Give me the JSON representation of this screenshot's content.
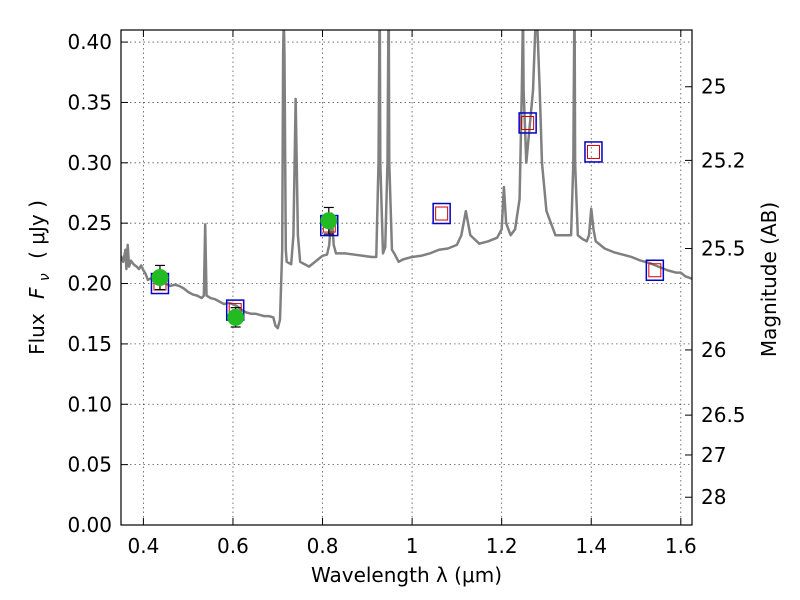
{
  "chart_data": {
    "type": "line",
    "xlabel": "Wavelength  λ (μm)",
    "ylabel_main": "Flux",
    "ylabel_symbol": "F",
    "ylabel_sub": "ν",
    "ylabel_unit": "( μJy )",
    "y2label": "Magnitude (AB)",
    "xlim": [
      0.35,
      1.625
    ],
    "ylim": [
      0.0,
      0.41
    ],
    "grid": true,
    "x_ticks": [
      0.4,
      0.6,
      0.8,
      1.0,
      1.2,
      1.4,
      1.6
    ],
    "x_tick_labels": [
      "0.4",
      "0.6",
      "0.8",
      "1",
      "1.2",
      "1.4",
      "1.6"
    ],
    "y_ticks": [
      0.0,
      0.05,
      0.1,
      0.15,
      0.2,
      0.25,
      0.3,
      0.35,
      0.4
    ],
    "y_tick_labels": [
      "0.00",
      "0.05",
      "0.10",
      "0.15",
      "0.20",
      "0.25",
      "0.30",
      "0.35",
      "0.40"
    ],
    "y2_ticks": [
      {
        "label": "25",
        "flux": 0.363
      },
      {
        "label": "25.2",
        "flux": 0.302
      },
      {
        "label": "25.5",
        "flux": 0.229
      },
      {
        "label": "26",
        "flux": 0.145
      },
      {
        "label": "26.5",
        "flux": 0.091
      },
      {
        "label": "27",
        "flux": 0.058
      },
      {
        "label": "28",
        "flux": 0.023
      }
    ],
    "colors": {
      "spectrum": "#808080",
      "model_box": "#0000cc",
      "model_box_inner": "#cc0000",
      "observed_fill": "#22bb22",
      "grid": "#555555"
    },
    "series": [
      {
        "name": "model spectrum",
        "kind": "line",
        "points": [
          [
            0.35,
            0.223
          ],
          [
            0.355,
            0.218
          ],
          [
            0.36,
            0.228
          ],
          [
            0.362,
            0.212
          ],
          [
            0.365,
            0.232
          ],
          [
            0.368,
            0.214
          ],
          [
            0.372,
            0.219
          ],
          [
            0.378,
            0.216
          ],
          [
            0.385,
            0.214
          ],
          [
            0.39,
            0.212
          ],
          [
            0.395,
            0.215
          ],
          [
            0.4,
            0.211
          ],
          [
            0.405,
            0.208
          ],
          [
            0.41,
            0.203
          ],
          [
            0.415,
            0.204
          ],
          [
            0.42,
            0.205
          ],
          [
            0.425,
            0.203
          ],
          [
            0.43,
            0.202
          ],
          [
            0.435,
            0.201
          ],
          [
            0.44,
            0.201
          ],
          [
            0.45,
            0.2
          ],
          [
            0.46,
            0.198
          ],
          [
            0.47,
            0.199
          ],
          [
            0.48,
            0.198
          ],
          [
            0.49,
            0.196
          ],
          [
            0.5,
            0.193
          ],
          [
            0.51,
            0.191
          ],
          [
            0.52,
            0.19
          ],
          [
            0.53,
            0.188
          ],
          [
            0.535,
            0.19
          ],
          [
            0.538,
            0.249
          ],
          [
            0.541,
            0.19
          ],
          [
            0.55,
            0.188
          ],
          [
            0.56,
            0.187
          ],
          [
            0.57,
            0.185
          ],
          [
            0.58,
            0.183
          ],
          [
            0.59,
            0.184
          ],
          [
            0.6,
            0.183
          ],
          [
            0.61,
            0.181
          ],
          [
            0.62,
            0.178
          ],
          [
            0.63,
            0.176
          ],
          [
            0.64,
            0.175
          ],
          [
            0.65,
            0.175
          ],
          [
            0.66,
            0.174
          ],
          [
            0.67,
            0.173
          ],
          [
            0.68,
            0.173
          ],
          [
            0.69,
            0.172
          ],
          [
            0.695,
            0.165
          ],
          [
            0.7,
            0.163
          ],
          [
            0.705,
            0.17
          ],
          [
            0.71,
            0.228
          ],
          [
            0.712,
            0.39
          ],
          [
            0.713,
            0.41
          ],
          [
            0.714,
            0.41
          ],
          [
            0.715,
            0.39
          ],
          [
            0.718,
            0.228
          ],
          [
            0.72,
            0.218
          ],
          [
            0.73,
            0.216
          ],
          [
            0.735,
            0.24
          ],
          [
            0.74,
            0.353
          ],
          [
            0.745,
            0.24
          ],
          [
            0.75,
            0.218
          ],
          [
            0.76,
            0.216
          ],
          [
            0.77,
            0.214
          ],
          [
            0.78,
            0.217
          ],
          [
            0.79,
            0.22
          ],
          [
            0.8,
            0.223
          ],
          [
            0.81,
            0.224
          ],
          [
            0.815,
            0.232
          ],
          [
            0.82,
            0.258
          ],
          [
            0.825,
            0.232
          ],
          [
            0.83,
            0.225
          ],
          [
            0.85,
            0.225
          ],
          [
            0.87,
            0.224
          ],
          [
            0.89,
            0.223
          ],
          [
            0.91,
            0.222
          ],
          [
            0.92,
            0.222
          ],
          [
            0.925,
            0.3
          ],
          [
            0.927,
            0.41
          ],
          [
            0.928,
            0.41
          ],
          [
            0.929,
            0.3
          ],
          [
            0.935,
            0.225
          ],
          [
            0.94,
            0.23
          ],
          [
            0.945,
            0.3
          ],
          [
            0.947,
            0.41
          ],
          [
            0.948,
            0.41
          ],
          [
            0.949,
            0.3
          ],
          [
            0.955,
            0.228
          ],
          [
            0.96,
            0.225
          ],
          [
            0.97,
            0.218
          ],
          [
            0.98,
            0.22
          ],
          [
            1.0,
            0.222
          ],
          [
            1.02,
            0.223
          ],
          [
            1.04,
            0.225
          ],
          [
            1.06,
            0.228
          ],
          [
            1.08,
            0.229
          ],
          [
            1.1,
            0.232
          ],
          [
            1.11,
            0.24
          ],
          [
            1.12,
            0.26
          ],
          [
            1.13,
            0.24
          ],
          [
            1.15,
            0.233
          ],
          [
            1.17,
            0.235
          ],
          [
            1.19,
            0.238
          ],
          [
            1.2,
            0.245
          ],
          [
            1.205,
            0.28
          ],
          [
            1.21,
            0.25
          ],
          [
            1.22,
            0.24
          ],
          [
            1.23,
            0.245
          ],
          [
            1.24,
            0.27
          ],
          [
            1.245,
            0.36
          ],
          [
            1.247,
            0.41
          ],
          [
            1.248,
            0.41
          ],
          [
            1.249,
            0.36
          ],
          [
            1.255,
            0.3
          ],
          [
            1.27,
            0.36
          ],
          [
            1.275,
            0.41
          ],
          [
            1.28,
            0.41
          ],
          [
            1.285,
            0.36
          ],
          [
            1.29,
            0.3
          ],
          [
            1.3,
            0.26
          ],
          [
            1.32,
            0.24
          ],
          [
            1.34,
            0.24
          ],
          [
            1.355,
            0.24
          ],
          [
            1.36,
            0.3
          ],
          [
            1.362,
            0.41
          ],
          [
            1.363,
            0.41
          ],
          [
            1.364,
            0.3
          ],
          [
            1.37,
            0.24
          ],
          [
            1.38,
            0.237
          ],
          [
            1.39,
            0.235
          ],
          [
            1.395,
            0.24
          ],
          [
            1.4,
            0.262
          ],
          [
            1.405,
            0.245
          ],
          [
            1.41,
            0.235
          ],
          [
            1.43,
            0.229
          ],
          [
            1.45,
            0.226
          ],
          [
            1.47,
            0.224
          ],
          [
            1.49,
            0.222
          ],
          [
            1.51,
            0.219
          ],
          [
            1.53,
            0.217
          ],
          [
            1.55,
            0.214
          ],
          [
            1.57,
            0.211
          ],
          [
            1.59,
            0.209
          ],
          [
            1.6,
            0.209
          ],
          [
            1.61,
            0.206
          ],
          [
            1.625,
            0.204
          ]
        ]
      },
      {
        "name": "model photometry",
        "kind": "square",
        "points": [
          [
            0.437,
            0.2
          ],
          [
            0.605,
            0.178
          ],
          [
            0.815,
            0.248
          ],
          [
            1.066,
            0.258
          ],
          [
            1.258,
            0.333
          ],
          [
            1.405,
            0.309
          ],
          [
            1.542,
            0.211
          ]
        ]
      },
      {
        "name": "observed photometry",
        "kind": "circle",
        "points": [
          {
            "x": 0.437,
            "y": 0.205,
            "err": 0.01
          },
          {
            "x": 0.606,
            "y": 0.172,
            "err": 0.008
          },
          {
            "x": 0.814,
            "y": 0.252,
            "err": 0.011
          }
        ]
      }
    ]
  }
}
